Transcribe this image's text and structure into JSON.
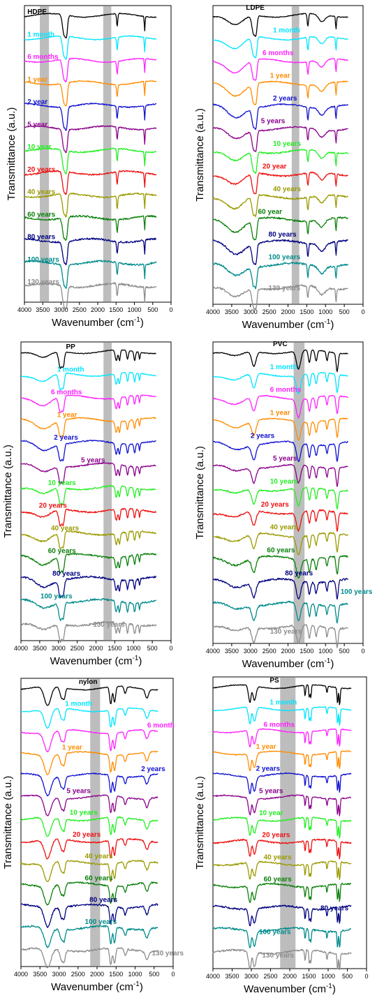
{
  "chart_data": [
    {
      "type": "line",
      "panel": "HDPE",
      "xlabel_main": "Wavenumber (cm",
      "xlabel_sup": "-1",
      "xlabel_end": ")",
      "ylabel": "Transmittance (a.u.)",
      "x_direction": "reversed",
      "xlim": [
        4000,
        0
      ],
      "xticks": [
        "4000",
        "3500",
        "3000",
        "2500",
        "2000",
        "1500",
        "1000",
        "500",
        "0"
      ],
      "highlight_bands": [
        [
          3580,
          3330
        ],
        [
          1850,
          1630
        ]
      ],
      "series": [
        {
          "name": "HDPE",
          "color": "#000000"
        },
        {
          "name": "1 month",
          "color": "#00e5ff"
        },
        {
          "name": "6 months",
          "color": "#ff22ff"
        },
        {
          "name": "1 year",
          "color": "#ff8c00"
        },
        {
          "name": "2 year",
          "color": "#1010d0"
        },
        {
          "name": "5 year",
          "color": "#8b008b"
        },
        {
          "name": "10 year",
          "color": "#22ee22"
        },
        {
          "name": "20 years",
          "color": "#ee1111"
        },
        {
          "name": "40 years",
          "color": "#9a9a00"
        },
        {
          "name": "60 years",
          "color": "#0a800a"
        },
        {
          "name": "80 years",
          "color": "#000080"
        },
        {
          "name": "100 years",
          "color": "#008b8b"
        },
        {
          "name": "130 years",
          "color": "#8c8c8c"
        }
      ]
    },
    {
      "type": "line",
      "panel": "LDPE",
      "xlabel_main": "Wavenumber (cm",
      "xlabel_sup": "-1",
      "xlabel_end": ")",
      "ylabel": "Transmittance (a.u.)",
      "x_direction": "reversed",
      "xlim": [
        4000,
        0
      ],
      "xticks": [
        "4000",
        "3500",
        "3000",
        "2500",
        "2000",
        "1500",
        "1000",
        "500",
        "0"
      ],
      "highlight_bands": [
        [
          1900,
          1700
        ]
      ],
      "series": [
        {
          "name": "LDPE",
          "color": "#000000"
        },
        {
          "name": "1 month",
          "color": "#00e5ff"
        },
        {
          "name": "6 months",
          "color": "#ff22ff"
        },
        {
          "name": "1 year",
          "color": "#ff8c00"
        },
        {
          "name": "2 years",
          "color": "#1010d0"
        },
        {
          "name": "5 years",
          "color": "#8b008b"
        },
        {
          "name": "10 years",
          "color": "#22ee22"
        },
        {
          "name": "20 year",
          "color": "#ee1111"
        },
        {
          "name": "40 years",
          "color": "#9a9a00"
        },
        {
          "name": "60 year",
          "color": "#0a800a"
        },
        {
          "name": "80 years",
          "color": "#000080"
        },
        {
          "name": "100 years",
          "color": "#008b8b"
        },
        {
          "name": "130 years",
          "color": "#8c8c8c"
        }
      ]
    },
    {
      "type": "line",
      "panel": "PP",
      "xlabel_main": "Wavenumber (cm",
      "xlabel_sup": "-1",
      "xlabel_end": ")",
      "ylabel": "Transmittance (a.u.)",
      "x_direction": "reversed",
      "xlim": [
        4000,
        0
      ],
      "xticks": [
        "4000",
        "3500",
        "3000",
        "2500",
        "2000",
        "1500",
        "1000",
        "500",
        "0"
      ],
      "highlight_bands": [
        [
          1800,
          1580
        ]
      ],
      "series": [
        {
          "name": "PP",
          "color": "#000000"
        },
        {
          "name": "1 month",
          "color": "#00e5ff"
        },
        {
          "name": "6 months",
          "color": "#ff22ff"
        },
        {
          "name": "1 year",
          "color": "#ff8c00"
        },
        {
          "name": "2 years",
          "color": "#1010d0"
        },
        {
          "name": "5 years",
          "color": "#8b008b"
        },
        {
          "name": "10 years",
          "color": "#22ee22"
        },
        {
          "name": "20 years",
          "color": "#ee1111"
        },
        {
          "name": "40 years",
          "color": "#9a9a00"
        },
        {
          "name": "60 years",
          "color": "#0a800a"
        },
        {
          "name": "80 years",
          "color": "#000080"
        },
        {
          "name": "100 years",
          "color": "#008b8b"
        },
        {
          "name": "130 years",
          "color": "#8c8c8c"
        }
      ]
    },
    {
      "type": "line",
      "panel": "PVC",
      "xlabel_main": "Wavenumber (cm",
      "xlabel_sup": "-1",
      "xlabel_end": ")",
      "ylabel": "Transmittance (a.u.)",
      "x_direction": "reversed",
      "xlim": [
        4000,
        0
      ],
      "xticks": [
        "4000",
        "3500",
        "3000",
        "2500",
        "2000",
        "1500",
        "1000",
        "500",
        "0"
      ],
      "highlight_bands": [
        [
          1850,
          1560
        ]
      ],
      "series": [
        {
          "name": "PVC",
          "color": "#000000"
        },
        {
          "name": "1 month",
          "color": "#00e5ff"
        },
        {
          "name": "6 months",
          "color": "#ff22ff"
        },
        {
          "name": "1 year",
          "color": "#ff8c00"
        },
        {
          "name": "2 years",
          "color": "#1010d0"
        },
        {
          "name": "5 years",
          "color": "#8b008b"
        },
        {
          "name": "10 years",
          "color": "#22ee22"
        },
        {
          "name": "20 years",
          "color": "#ee1111"
        },
        {
          "name": "40 years",
          "color": "#9a9a00"
        },
        {
          "name": "60 years",
          "color": "#0a800a"
        },
        {
          "name": "80 years",
          "color": "#000080"
        },
        {
          "name": "100 years",
          "color": "#008b8b"
        },
        {
          "name": "130 years",
          "color": "#8c8c8c"
        }
      ]
    },
    {
      "type": "line",
      "panel": "nylon",
      "xlabel_main": "Wavenumber (cm",
      "xlabel_sup": "-1",
      "xlabel_end": ")",
      "ylabel": "Transmittance (a.u.)",
      "x_direction": "reversed",
      "xlim": [
        4000,
        0
      ],
      "xticks": [
        "4000",
        "3500",
        "3000",
        "2500",
        "2000",
        "1500",
        "1000",
        "500",
        "0"
      ],
      "highlight_bands": [
        [
          2180,
          1920
        ]
      ],
      "series": [
        {
          "name": "nylon",
          "color": "#000000"
        },
        {
          "name": "1 month",
          "color": "#00e5ff"
        },
        {
          "name": "6 month",
          "color": "#ff22ff"
        },
        {
          "name": "1 year",
          "color": "#ff8c00"
        },
        {
          "name": "2 years",
          "color": "#1010d0"
        },
        {
          "name": "5 years",
          "color": "#8b008b"
        },
        {
          "name": "10 years",
          "color": "#22ee22"
        },
        {
          "name": "20 years",
          "color": "#ee1111"
        },
        {
          "name": "40 years",
          "color": "#9a9a00"
        },
        {
          "name": "60 years",
          "color": "#0a800a"
        },
        {
          "name": "80 years",
          "color": "#000080"
        },
        {
          "name": "100 years",
          "color": "#008b8b"
        },
        {
          "name": "130 years",
          "color": "#8c8c8c"
        }
      ]
    },
    {
      "type": "line",
      "panel": "PS",
      "xlabel_main": "Wavenumber (cm",
      "xlabel_sup": "-1",
      "xlabel_end": ")",
      "ylabel": "Transmittance (a.u.)",
      "x_direction": "reversed",
      "xlim": [
        4000,
        0
      ],
      "xticks": [
        "4000",
        "3500",
        "3000",
        "2500",
        "2000",
        "1500",
        "1000",
        "500",
        "0"
      ],
      "highlight_bands": [
        [
          2250,
          1850
        ]
      ],
      "series": [
        {
          "name": "PS",
          "color": "#000000"
        },
        {
          "name": "1 month",
          "color": "#00e5ff"
        },
        {
          "name": "6 months",
          "color": "#ff22ff"
        },
        {
          "name": "1 year",
          "color": "#ff8c00"
        },
        {
          "name": "2 years",
          "color": "#1010d0"
        },
        {
          "name": "5 years",
          "color": "#8b008b"
        },
        {
          "name": "10 year",
          "color": "#22ee22"
        },
        {
          "name": "20 years",
          "color": "#ee1111"
        },
        {
          "name": "40 years",
          "color": "#9a9a00"
        },
        {
          "name": "60 years",
          "color": "#0a800a"
        },
        {
          "name": "80 years",
          "color": "#000080"
        },
        {
          "name": "100 years",
          "color": "#008b8b"
        },
        {
          "name": "130 years",
          "color": "#8c8c8c"
        }
      ]
    }
  ]
}
